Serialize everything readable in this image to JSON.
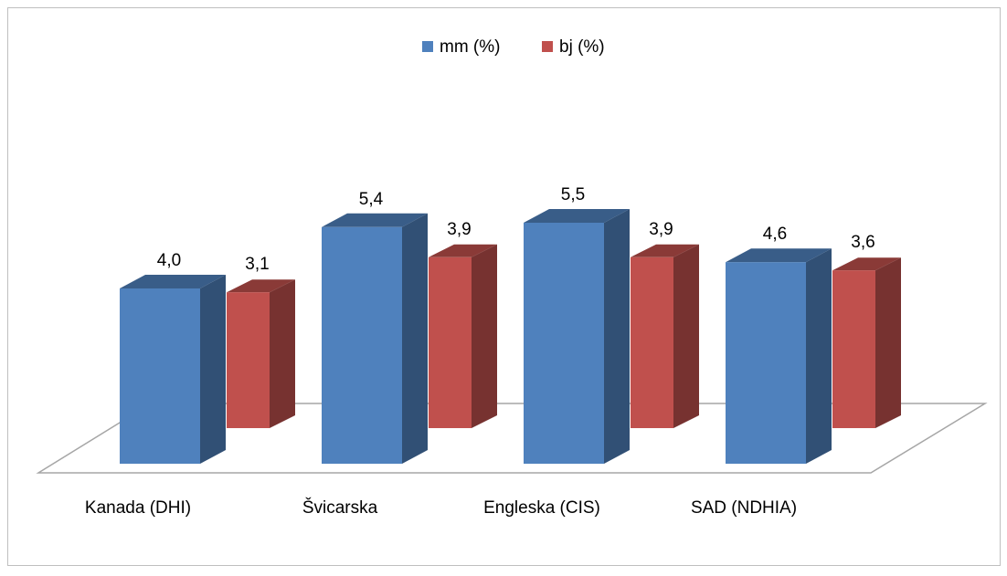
{
  "chart_data": {
    "type": "bar3d",
    "categories": [
      "Kanada (DHI)",
      "Švicarska",
      "Engleska (CIS)",
      "SAD (NDHIA)"
    ],
    "series": [
      {
        "name": "mm (%)",
        "color": "#4f81bd",
        "values": [
          4.0,
          5.4,
          5.5,
          4.6
        ],
        "value_labels": [
          "4,0",
          "5,4",
          "5,5",
          "4,6"
        ]
      },
      {
        "name": "bj (%)",
        "color": "#c0504d",
        "values": [
          3.1,
          3.9,
          3.9,
          3.6
        ],
        "value_labels": [
          "3,1",
          "3,9",
          "3,9",
          "3,6"
        ]
      }
    ],
    "legend": "top"
  }
}
